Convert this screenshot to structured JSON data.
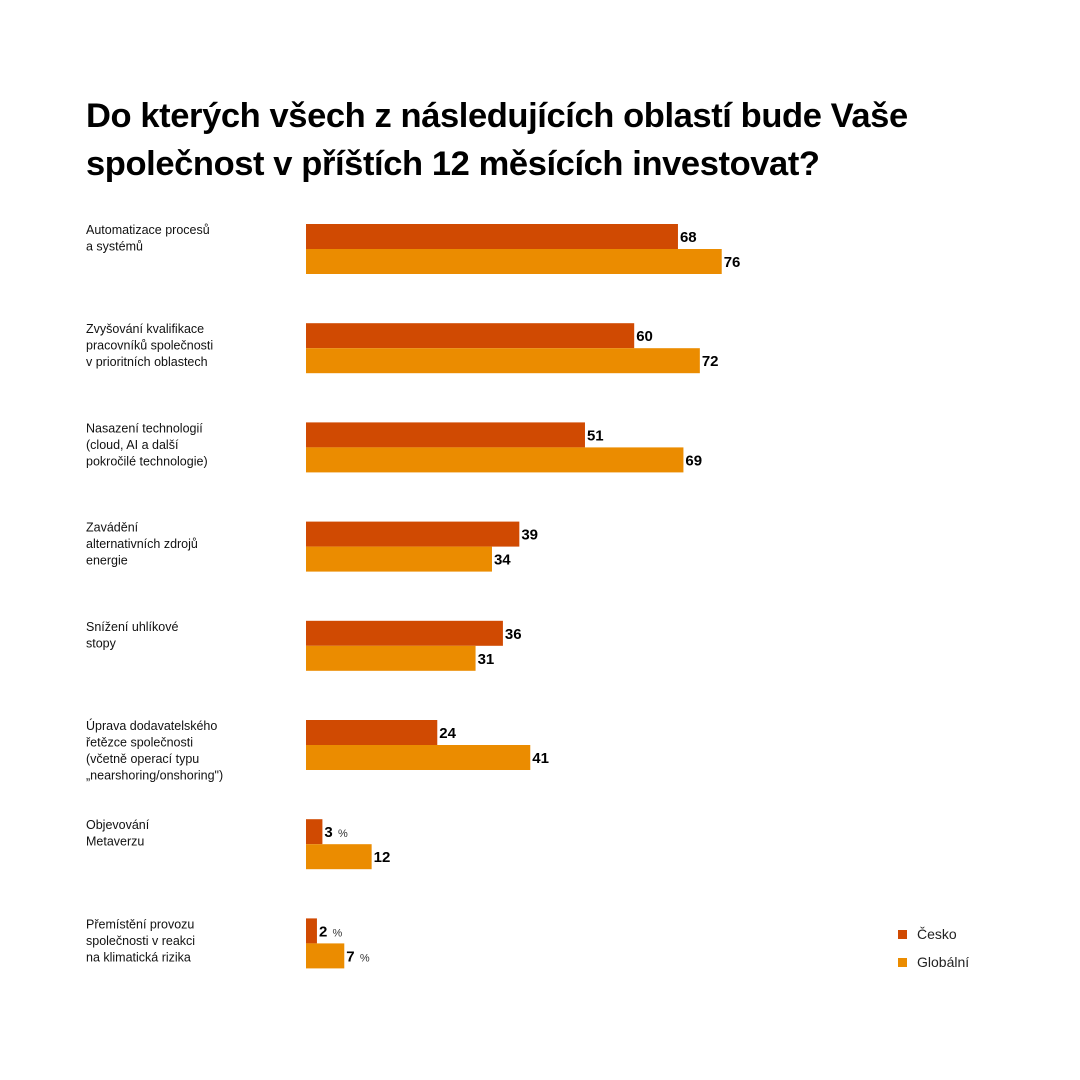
{
  "chart_data": {
    "type": "bar",
    "orientation": "horizontal",
    "title": "Do kterých všech z následujících oblastí bude Vaše společnost v příštích 12 měsících investovat?",
    "xlabel": "",
    "ylabel": "",
    "unit": "%",
    "xlim": [
      0,
      100
    ],
    "grid": false,
    "legend_position": "bottom-right",
    "categories": [
      [
        "Automatizace procesů",
        "a systémů"
      ],
      [
        "Zvyšování kvalifikace",
        "pracovníků společnosti",
        "v prioritních oblastech"
      ],
      [
        "Nasazení technologií",
        "(cloud, AI a další",
        "pokročilé technologie)"
      ],
      [
        "Zavádění",
        "alternativních zdrojů",
        "energie"
      ],
      [
        "Snížení uhlíkové",
        "stopy"
      ],
      [
        "Úprava dodavatelského",
        "řetězce společnosti",
        "(včetně operací typu",
        "„nearshoring/onshoring\")"
      ],
      [
        "Objevování",
        "Metaverzu"
      ],
      [
        "Přemístění provozu",
        "společnosti v reakci",
        "na klimatická rizika"
      ]
    ],
    "series": [
      {
        "name": "Česko",
        "color": "#D04A02",
        "values": [
          68,
          60,
          51,
          39,
          36,
          24,
          3,
          2
        ]
      },
      {
        "name": "Globální",
        "color": "#EB8C00",
        "values": [
          76,
          72,
          69,
          34,
          31,
          41,
          12,
          7
        ]
      }
    ],
    "percent_suffix": [
      [
        false,
        false,
        false,
        false,
        false,
        false,
        true,
        true
      ],
      [
        false,
        false,
        false,
        false,
        false,
        false,
        false,
        true
      ]
    ],
    "percent_sign": "%"
  },
  "legend": {
    "items": [
      {
        "label": "Česko",
        "color": "#D04A02"
      },
      {
        "label": "Globální",
        "color": "#EB8C00"
      }
    ]
  }
}
